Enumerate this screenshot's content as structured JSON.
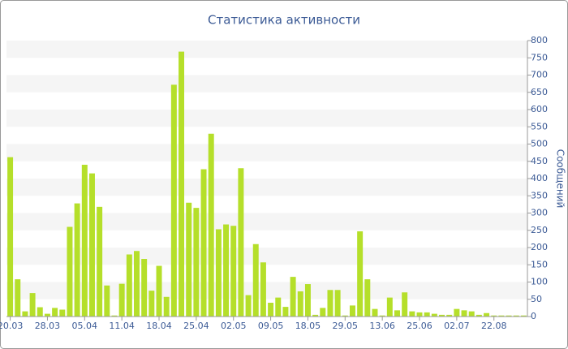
{
  "chart_data": {
    "type": "bar",
    "title": "Статистика активности",
    "y_label": "Сообщений",
    "categories": [
      "20.03",
      null,
      null,
      null,
      null,
      "28.03",
      null,
      null,
      null,
      null,
      "05.04",
      null,
      null,
      null,
      null,
      "11.04",
      null,
      null,
      null,
      null,
      "18.04",
      null,
      null,
      null,
      null,
      "25.04",
      null,
      null,
      null,
      null,
      "02.05",
      null,
      null,
      null,
      null,
      "09.05",
      null,
      null,
      null,
      null,
      "18.05",
      null,
      null,
      null,
      null,
      "29.05",
      null,
      null,
      null,
      null,
      "13.06",
      null,
      null,
      null,
      null,
      "25.06",
      null,
      null,
      null,
      null,
      "02.07",
      null,
      null,
      null,
      null,
      "22.08",
      null,
      null,
      null,
      null
    ],
    "values": [
      462,
      108,
      15,
      68,
      27,
      8,
      25,
      20,
      260,
      328,
      440,
      415,
      318,
      90,
      3,
      95,
      180,
      190,
      167,
      75,
      147,
      57,
      672,
      768,
      330,
      315,
      427,
      530,
      253,
      267,
      263,
      430,
      62,
      210,
      157,
      40,
      55,
      28,
      115,
      73,
      94,
      5,
      25,
      77,
      77,
      3,
      32,
      247,
      108,
      22,
      3,
      55,
      18,
      70,
      15,
      12,
      12,
      8,
      5,
      5,
      22,
      18,
      15,
      5,
      10,
      3,
      3,
      3,
      3,
      3
    ],
    "color": "#b5df2a",
    "ylim": [
      0,
      800
    ],
    "yticks": [
      0,
      50,
      100,
      150,
      200,
      250,
      300,
      350,
      400,
      450,
      500,
      550,
      600,
      650,
      700,
      750,
      800
    ],
    "grid": true,
    "y_axis_side": "right"
  }
}
